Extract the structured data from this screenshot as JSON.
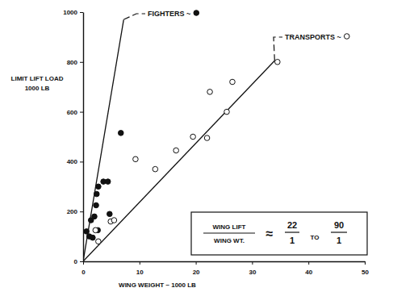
{
  "chart_data": {
    "type": "scatter",
    "xlabel": "WING WEIGHT ~ 1000 LB",
    "ylabel": [
      "LIMIT LIFT LOAD",
      "1000 LB"
    ],
    "xlim": [
      0,
      50
    ],
    "ylim": [
      0,
      1000
    ],
    "xticks": [
      0,
      10,
      20,
      30,
      40,
      50
    ],
    "yticks": [
      0,
      200,
      400,
      600,
      800,
      1000
    ],
    "grid": false,
    "series": [
      {
        "name": "FIGHTERS ~",
        "color": "#111111",
        "marker": "filled",
        "x": [
          0.6,
          1.1,
          1.4,
          1.7,
          2.0,
          2.3,
          2.4,
          2.6,
          2.7,
          3.6,
          4.4,
          4.7,
          6.7
        ],
        "values": [
          120,
          100,
          165,
          95,
          180,
          225,
          270,
          125,
          300,
          320,
          320,
          190,
          515
        ],
        "trend": {
          "x": [
            0,
            7.2
          ],
          "y": [
            0,
            970
          ]
        }
      },
      {
        "name": "TRANSPORTS ~",
        "color": "#111111",
        "marker": "open",
        "x": [
          2.2,
          2.7,
          4.9,
          5.5,
          9.3,
          12.8,
          16.5,
          19.5,
          22.0,
          22.5,
          25.5,
          26.5,
          34.5
        ],
        "values": [
          125,
          80,
          160,
          165,
          410,
          370,
          445,
          500,
          495,
          680,
          600,
          720,
          800
        ],
        "trend": {
          "x": [
            0,
            34
          ],
          "y": [
            0,
            805
          ]
        }
      }
    ],
    "ratio_box": {
      "numerator": "WING LIFT",
      "denominator": "WING WT.",
      "relation": "≈",
      "low": [
        22,
        1
      ],
      "connector": "TO",
      "high": [
        90,
        1
      ]
    }
  }
}
